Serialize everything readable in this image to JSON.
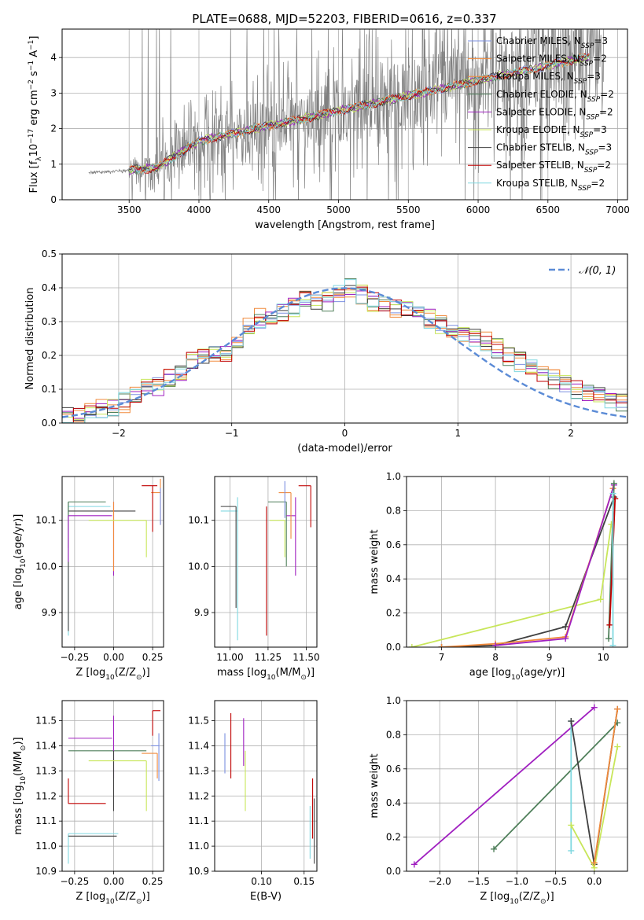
{
  "figure": {
    "title": "PLATE=0688, MJD=52203, FIBERID=0616, z=0.337"
  },
  "colors": {
    "data": "#808080",
    "gauss": "#5b8bd6",
    "models": [
      "#7b8fe0",
      "#f08a3c",
      "#f08a3c",
      "#4f7f5a",
      "#a020c0",
      "#c8e65a",
      "#404040",
      "#c00000",
      "#80d8e0"
    ],
    "ages": [
      "#4a4a4a",
      "#a020c0",
      "#c8e65a",
      "#e07aa0",
      "#f08a3c",
      "#80d8e0"
    ]
  },
  "legend_top": [
    {
      "pre": "Chabrier MILES, N",
      "post": "=3"
    },
    {
      "pre": "Salpeter MILES, N",
      "post": "=2"
    },
    {
      "pre": "Kroupa MILES, N",
      "post": "=3"
    },
    {
      "pre": "Chabrier ELODIE, N",
      "post": "=2"
    },
    {
      "pre": "Salpeter ELODIE, N",
      "post": "=2"
    },
    {
      "pre": "Kroupa ELODIE, N",
      "post": "=3"
    },
    {
      "pre": "Chabrier STELIB, N",
      "post": "=3"
    },
    {
      "pre": "Salpeter STELIB, N",
      "post": "=2"
    },
    {
      "pre": "Kroupa STELIB, N",
      "post": "=2"
    }
  ],
  "legend_sub": "SSP",
  "legend_gauss": "𝒩(0, 1)",
  "chart_data": [
    {
      "id": "spectrum",
      "type": "line",
      "xlabel": "wavelength [Angstrom, rest frame]",
      "ylabel": "Flux [f",
      "ylabel_sub": "λ",
      "ylabel_rest": "10",
      "ylabel_exp": "−17",
      "ylabel_unit": " erg cm",
      "ylabel_exp2": "−2",
      "ylabel_s": " s",
      "ylabel_exp3": "−1",
      "ylabel_A": " A",
      "ylabel_exp4": "−1",
      "ylabel_end": "]",
      "xlim": [
        3020,
        7070
      ],
      "ylim": [
        0,
        4.8
      ],
      "xticks": [
        3500,
        4000,
        4500,
        5000,
        5500,
        6000,
        6500,
        7000
      ],
      "yticks": [
        0,
        1,
        2,
        3,
        4
      ],
      "grid": true,
      "data_x_range": [
        3210,
        6900
      ],
      "model_x_range": [
        3500,
        6800
      ]
    },
    {
      "id": "residuals",
      "type": "step",
      "xlabel": "(data-model)/error",
      "ylabel": "Normed distribution",
      "xlim": [
        -2.5,
        2.5
      ],
      "ylim": [
        0,
        0.5
      ],
      "xticks": [
        -2,
        -1,
        0,
        1,
        2
      ],
      "xticklabels": [
        "−2",
        "−1",
        "0",
        "1",
        "2"
      ],
      "yticks": [
        0.0,
        0.1,
        0.2,
        0.3,
        0.4,
        0.5
      ],
      "yticklabels": [
        "0.0",
        "0.1",
        "0.2",
        "0.3",
        "0.4",
        "0.5"
      ],
      "grid": true,
      "bin_width": 0.1,
      "hist_base": [
        0.02,
        0.02,
        0.03,
        0.04,
        0.05,
        0.06,
        0.08,
        0.1,
        0.11,
        0.13,
        0.15,
        0.18,
        0.2,
        0.2,
        0.21,
        0.24,
        0.29,
        0.31,
        0.3,
        0.33,
        0.34,
        0.36,
        0.35,
        0.36,
        0.38,
        0.4,
        0.38,
        0.36,
        0.35,
        0.34,
        0.33,
        0.33,
        0.31,
        0.29,
        0.27,
        0.26,
        0.25,
        0.24,
        0.22,
        0.2,
        0.18,
        0.16,
        0.14,
        0.13,
        0.12,
        0.1,
        0.09,
        0.08,
        0.07,
        0.06
      ]
    },
    {
      "id": "age-Z",
      "type": "errorbar",
      "xlabel": "Z [log",
      "xlabel_sub": "10",
      "xlabel_rest": "(Z/Z",
      "xlabel_sub2": "⊙",
      "xlabel_end": ")]",
      "ylabel": "age  [log",
      "ylabel_sub": "10",
      "ylabel_rest": "(age/yr)]",
      "xlim": [
        -0.33,
        0.32
      ],
      "ylim": [
        9.825,
        10.195
      ],
      "xticks": [
        -0.25,
        0.0,
        0.25
      ],
      "xticklabels": [
        "−0.25",
        "0.00",
        "0.25"
      ],
      "yticks": [
        9.9,
        10.0,
        10.1
      ],
      "yticklabels": [
        "9.9",
        "10.0",
        "10.1"
      ],
      "grid": true,
      "points": [
        {
          "x": -0.29,
          "y": 10.13,
          "xerr": [
            0.0,
            0.27
          ],
          "yerr": [
            0.28,
            0.01
          ],
          "c": 8
        },
        {
          "x": -0.29,
          "y": 10.12,
          "xerr": [
            0.0,
            0.43
          ],
          "yerr": [
            0.26,
            0.02
          ],
          "c": 6
        },
        {
          "x": -0.29,
          "y": 10.14,
          "xerr": [
            0.0,
            0.24
          ],
          "yerr": [
            0.1,
            0.0
          ],
          "c": 3
        },
        {
          "x": -0.29,
          "y": 10.11,
          "xerr": [
            0.0,
            0.28
          ],
          "yerr": [
            0.1,
            0.0
          ],
          "c": 4
        },
        {
          "x": 0.0,
          "y": 10.12,
          "xerr": [
            0.0,
            0.0
          ],
          "yerr": [
            0.14,
            0.02
          ],
          "c": 4
        },
        {
          "x": 0.0,
          "y": 10.14,
          "xerr": [
            0.0,
            0.0
          ],
          "yerr": [
            0.15,
            0.0
          ],
          "c": 1
        },
        {
          "x": 0.21,
          "y": 10.1,
          "xerr": [
            0.37,
            0.0
          ],
          "yerr": [
            0.08,
            0.0
          ],
          "c": 5
        },
        {
          "x": 0.3,
          "y": 10.16,
          "xerr": [
            0.06,
            0.0
          ],
          "yerr": [
            0.07,
            0.03
          ],
          "c": 2
        },
        {
          "x": 0.25,
          "y": 10.175,
          "xerr": [
            0.07,
            0.03
          ],
          "yerr": [
            0.1,
            0.0
          ],
          "c": 7
        },
        {
          "x": 0.3,
          "y": 10.14,
          "xerr": [
            0.0,
            0.0
          ],
          "yerr": [
            0.05,
            0.03
          ],
          "c": 0
        }
      ]
    },
    {
      "id": "age-mass",
      "type": "errorbar",
      "xlabel": "mass [log",
      "xlabel_sub": "10",
      "xlabel_rest": "(M/M",
      "xlabel_sub2": "⊙",
      "xlabel_end": ")]",
      "ylabel": "",
      "xlim": [
        10.9,
        11.57
      ],
      "ylim": [
        9.825,
        10.195
      ],
      "xticks": [
        11.0,
        11.25,
        11.5
      ],
      "xticklabels": [
        "11.00",
        "11.25",
        "11.50"
      ],
      "yticks": [
        9.9,
        10.0,
        10.1
      ],
      "yticklabels": [
        "9.9",
        "10.0",
        "10.1"
      ],
      "grid": true,
      "points": [
        {
          "x": 11.05,
          "y": 10.12,
          "xerr": [
            0.11,
            0.0
          ],
          "yerr": [
            0.28,
            0.03
          ],
          "c": 8
        },
        {
          "x": 11.04,
          "y": 10.13,
          "xerr": [
            0.1,
            0.0
          ],
          "yerr": [
            0.22,
            0.0
          ],
          "c": 6
        },
        {
          "x": 11.24,
          "y": 10.13,
          "xerr": [
            0.0,
            0.0
          ],
          "yerr": [
            0.28,
            0.0
          ],
          "c": 7
        },
        {
          "x": 11.37,
          "y": 10.14,
          "xerr": [
            0.12,
            0.0
          ],
          "yerr": [
            0.14,
            0.0
          ],
          "c": 3
        },
        {
          "x": 11.36,
          "y": 10.1,
          "xerr": [
            0.1,
            0.0
          ],
          "yerr": [
            0.08,
            0.0
          ],
          "c": 5
        },
        {
          "x": 11.43,
          "y": 10.11,
          "xerr": [
            0.06,
            0.0
          ],
          "yerr": [
            0.13,
            0.04
          ],
          "c": 4
        },
        {
          "x": 11.4,
          "y": 10.16,
          "xerr": [
            0.08,
            0.0
          ],
          "yerr": [
            0.1,
            0.0
          ],
          "c": 2
        },
        {
          "x": 11.53,
          "y": 10.175,
          "xerr": [
            0.08,
            0.0
          ],
          "yerr": [
            0.09,
            0.0
          ],
          "c": 7
        },
        {
          "x": 11.36,
          "y": 10.155,
          "xerr": [
            0.0,
            0.0
          ],
          "yerr": [
            0.05,
            0.03
          ],
          "c": 0
        }
      ]
    },
    {
      "id": "massweight-age",
      "type": "line",
      "xlabel": "age  [log",
      "xlabel_sub": "10",
      "xlabel_rest": "(age/yr)]",
      "ylabel": "mass weight",
      "xlim": [
        6.35,
        10.45
      ],
      "ylim": [
        0,
        1.0
      ],
      "xticks": [
        7,
        8,
        9,
        10
      ],
      "yticks": [
        0.0,
        0.2,
        0.4,
        0.6,
        0.8,
        1.0
      ],
      "yticklabels": [
        "0.0",
        "0.2",
        "0.4",
        "0.6",
        "0.8",
        "1.0"
      ],
      "grid": true,
      "series": [
        {
          "x": [
            6.45,
            9.95,
            10.15
          ],
          "y": [
            0.0,
            0.28,
            0.72
          ],
          "c": 5
        },
        {
          "x": [
            7.0,
            8.0,
            9.3,
            10.2
          ],
          "y": [
            0.0,
            0.01,
            0.12,
            0.88
          ],
          "c": 6
        },
        {
          "x": [
            7.0,
            8.0,
            9.3,
            10.18
          ],
          "y": [
            0.0,
            0.02,
            0.06,
            0.93
          ],
          "c": 1
        },
        {
          "x": [
            8.0,
            9.3,
            10.2
          ],
          "y": [
            0.01,
            0.05,
            0.95
          ],
          "c": 4
        },
        {
          "x": [
            10.1,
            10.2
          ],
          "y": [
            0.05,
            0.96
          ],
          "c": 3
        },
        {
          "x": [
            10.12,
            10.22
          ],
          "y": [
            0.13,
            0.87
          ],
          "c": 7
        },
        {
          "x": [
            10.18,
            10.18
          ],
          "y": [
            0.01,
            0.9
          ],
          "c": 8
        }
      ]
    },
    {
      "id": "mass-Z",
      "type": "errorbar",
      "xlabel": "Z [log",
      "xlabel_sub": "10",
      "xlabel_rest": "(Z/Z",
      "xlabel_sub2": "⊙",
      "xlabel_end": ")]",
      "ylabel": "mass [log",
      "ylabel_sub": "10",
      "ylabel_rest": "(M/M",
      "ylabel_sub2": "⊙",
      "ylabel_end": ")]",
      "xlim": [
        -0.33,
        0.32
      ],
      "ylim": [
        10.9,
        11.58
      ],
      "xticks": [
        -0.25,
        0.0,
        0.25
      ],
      "xticklabels": [
        "−0.25",
        "0.00",
        "0.25"
      ],
      "yticks": [
        10.9,
        11.0,
        11.1,
        11.2,
        11.3,
        11.4,
        11.5
      ],
      "yticklabels": [
        "10.9",
        "11.0",
        "11.1",
        "11.2",
        "11.3",
        "11.4",
        "11.5"
      ],
      "grid": true,
      "points": [
        {
          "x": -0.29,
          "y": 11.05,
          "xerr": [
            0.0,
            0.32
          ],
          "yerr": [
            0.12,
            0.0
          ],
          "c": 8
        },
        {
          "x": -0.29,
          "y": 11.04,
          "xerr": [
            0.0,
            0.31
          ],
          "yerr": [
            0.0,
            0.0
          ],
          "c": 6
        },
        {
          "x": -0.29,
          "y": 11.17,
          "xerr": [
            0.0,
            0.24
          ],
          "yerr": [
            0.0,
            0.1
          ],
          "c": 7
        },
        {
          "x": -0.29,
          "y": 11.38,
          "xerr": [
            0.0,
            0.5
          ],
          "yerr": [
            0.0,
            0.0
          ],
          "c": 3
        },
        {
          "x": -0.29,
          "y": 11.43,
          "xerr": [
            0.0,
            0.28
          ],
          "yerr": [
            0.0,
            0.0
          ],
          "c": 4
        },
        {
          "x": -0.0,
          "y": 11.43,
          "xerr": [
            0.0,
            0.0
          ],
          "yerr": [
            0.16,
            0.09
          ],
          "c": 4
        },
        {
          "x": 0.0,
          "y": 11.38,
          "xerr": [
            0.0,
            0.0
          ],
          "yerr": [
            0.24,
            0.0
          ],
          "c": 6
        },
        {
          "x": 0.21,
          "y": 11.34,
          "xerr": [
            0.37,
            0.0
          ],
          "yerr": [
            0.2,
            0.0
          ],
          "c": 5
        },
        {
          "x": 0.28,
          "y": 11.37,
          "xerr": [
            0.1,
            0.0
          ],
          "yerr": [
            0.1,
            0.0
          ],
          "c": 2
        },
        {
          "x": 0.25,
          "y": 11.54,
          "xerr": [
            0.0,
            0.05
          ],
          "yerr": [
            0.1,
            0.0
          ],
          "c": 7
        },
        {
          "x": 0.29,
          "y": 11.4,
          "xerr": [
            0.05,
            0.0
          ],
          "yerr": [
            0.14,
            0.05
          ],
          "c": 0
        }
      ]
    },
    {
      "id": "mass-ebv",
      "type": "errorbar",
      "xlabel": "E(B-V)",
      "ylabel": "",
      "xlim": [
        0.045,
        0.165
      ],
      "ylim": [
        10.9,
        11.58
      ],
      "xticks": [
        0.1,
        0.15
      ],
      "xticklabels": [
        "0.10",
        "0.15"
      ],
      "yticks": [
        10.9,
        11.0,
        11.1,
        11.2,
        11.3,
        11.4,
        11.5
      ],
      "yticklabels": [
        "10.9",
        "11.0",
        "11.1",
        "11.2",
        "11.3",
        "11.4",
        "11.5"
      ],
      "grid": true,
      "points": [
        {
          "x": 0.057,
          "y": 11.37,
          "xerr": [
            0.0,
            0.0
          ],
          "yerr": [
            0.08,
            0.08
          ],
          "c": 0
        },
        {
          "x": 0.064,
          "y": 11.43,
          "xerr": [
            0.0,
            0.0
          ],
          "yerr": [
            0.16,
            0.1
          ],
          "c": 7
        },
        {
          "x": 0.079,
          "y": 11.43,
          "xerr": [
            0.0,
            0.0
          ],
          "yerr": [
            0.11,
            0.08
          ],
          "c": 4
        },
        {
          "x": 0.081,
          "y": 11.38,
          "xerr": [
            0.0,
            0.0
          ],
          "yerr": [
            0.24,
            0.0
          ],
          "c": 5
        },
        {
          "x": 0.157,
          "y": 11.05,
          "xerr": [
            0.0,
            0.0
          ],
          "yerr": [
            0.1,
            0.11
          ],
          "c": 8
        },
        {
          "x": 0.16,
          "y": 11.17,
          "xerr": [
            0.0,
            0.0
          ],
          "yerr": [
            0.14,
            0.1
          ],
          "c": 7
        },
        {
          "x": 0.162,
          "y": 11.1,
          "xerr": [
            0.0,
            0.0
          ],
          "yerr": [
            0.17,
            0.09
          ],
          "c": 6
        }
      ]
    },
    {
      "id": "massweight-Z",
      "type": "line",
      "xlabel": "Z [log",
      "xlabel_sub": "10",
      "xlabel_rest": "(Z/Z",
      "xlabel_sub2": "⊙",
      "xlabel_end": ")]",
      "ylabel": "mass weight",
      "xlim": [
        -2.43,
        0.43
      ],
      "ylim": [
        0,
        1.0
      ],
      "xticks": [
        -2.0,
        -1.5,
        -1.0,
        -0.5,
        0.0
      ],
      "xticklabels": [
        "−2.0",
        "−1.5",
        "−1.0",
        "−0.5",
        "0.0"
      ],
      "yticks": [
        0.0,
        0.2,
        0.4,
        0.6,
        0.8,
        1.0
      ],
      "yticklabels": [
        "0.0",
        "0.2",
        "0.4",
        "0.6",
        "0.8",
        "1.0"
      ],
      "grid": true,
      "series": [
        {
          "x": [
            -2.33,
            0.0
          ],
          "y": [
            0.04,
            0.96
          ],
          "c": 4
        },
        {
          "x": [
            -1.3,
            0.3
          ],
          "y": [
            0.13,
            0.87
          ],
          "c": 3
        },
        {
          "x": [
            -0.3,
            -0.3
          ],
          "y": [
            0.12,
            0.88
          ],
          "c": 8
        },
        {
          "x": [
            -0.3,
            0.0,
            0.3
          ],
          "y": [
            0.88,
            0.04,
            0.95
          ],
          "c": 6
        },
        {
          "x": [
            -0.3,
            0.0,
            0.3
          ],
          "y": [
            0.27,
            0.02,
            0.73
          ],
          "c": 5
        },
        {
          "x": [
            0.0,
            0.3
          ],
          "y": [
            0.05,
            0.95
          ],
          "c": 1
        }
      ]
    }
  ]
}
